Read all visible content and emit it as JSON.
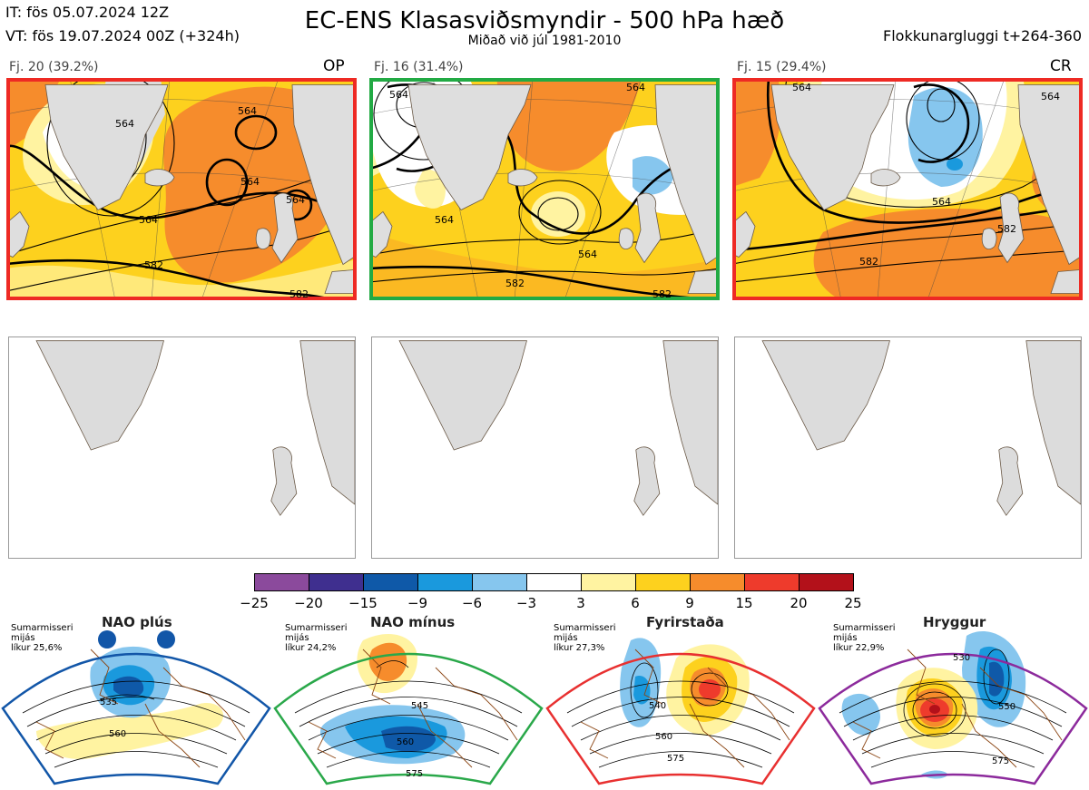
{
  "header": {
    "init_line": "IT: fös 05.07.2024 12Z",
    "valid_line": "VT: fös 19.07.2024 00Z  (+324h)",
    "title": "EC-ENS Klasasviðsmyndir - 500 hPa hæð",
    "subtitle": "Miðað við júl 1981-2010",
    "window": "Flokkunargluggi t+264-360"
  },
  "clusters": [
    {
      "label": "Fj. 20 (39.2%)",
      "tag": "OP",
      "border_color": "#ee2a24",
      "contours": [
        "564",
        "564",
        "564",
        "564",
        "564",
        "582",
        "582"
      ]
    },
    {
      "label": "Fj. 16 (31.4%)",
      "tag": "",
      "border_color": "#22aa44",
      "contours": [
        "564",
        "564",
        "564",
        "564",
        "582",
        "582"
      ]
    },
    {
      "label": "Fj. 15 (29.4%)",
      "tag": "CR",
      "border_color": "#ee2a24",
      "contours": [
        "564",
        "564",
        "564",
        "582",
        "582"
      ]
    }
  ],
  "colorbar": {
    "ticks": [
      "−25",
      "−20",
      "−15",
      "−9",
      "−6",
      "−3",
      "3",
      "6",
      "9",
      "15",
      "20",
      "25"
    ],
    "colors": [
      "#8b4a9c",
      "#3f2f8f",
      "#0f59a8",
      "#1a99dd",
      "#86c6ee",
      "#ffffff",
      "#fff3a1",
      "#fdd11e",
      "#f68c2c",
      "#ee3b2c",
      "#b3111a"
    ]
  },
  "regimes": [
    {
      "title": "NAO plús",
      "stats": "Sumarmisseri\nmijás\nlíkur 25,6%",
      "border_color": "#1256a8",
      "dot_color": "#1256a8",
      "contours": [
        "535",
        "560"
      ]
    },
    {
      "title": "NAO mínus",
      "stats": "Sumarmisseri\nmijás\nlíkur 24,2%",
      "border_color": "#2aa84a",
      "dot_color": "#2aa84a",
      "contours": [
        "545",
        "560",
        "575"
      ]
    },
    {
      "title": "Fyrirstaða",
      "stats": "Sumarmisseri\nmijás\nlíkur 27,3%",
      "border_color": "#e83030",
      "dot_color": "#e82828",
      "contours": [
        "540",
        "560",
        "575"
      ]
    },
    {
      "title": "Hryggur",
      "stats": "Sumarmisseri\nmijás\nlíkur 22,9%",
      "border_color": "#8c2a9c",
      "dot_color": "#ea74ea",
      "contours": [
        "530",
        "550",
        "575"
      ]
    }
  ]
}
